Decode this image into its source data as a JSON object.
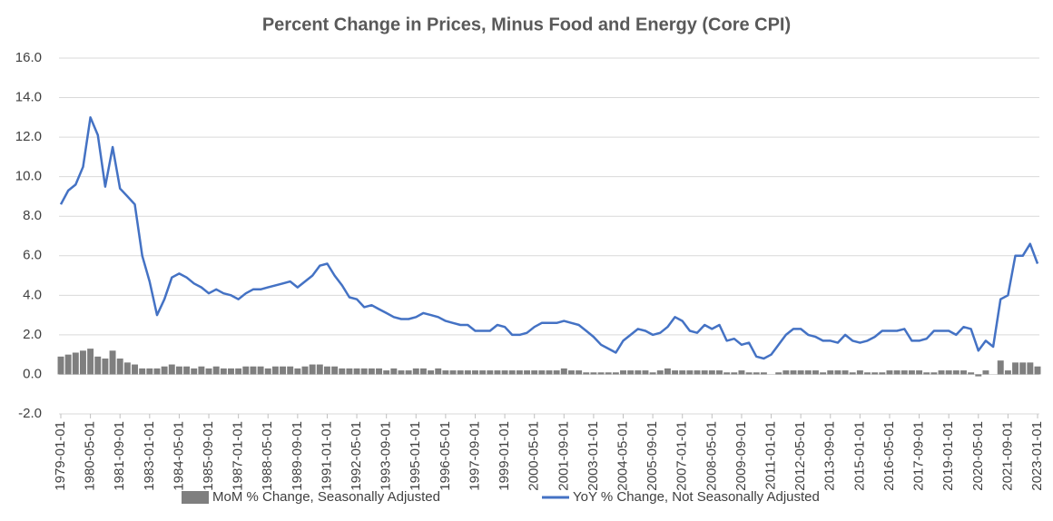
{
  "chart_data": {
    "type": "bar-line",
    "title": "Percent Change in Prices, Minus Food and Energy (Core CPI)",
    "categories": [
      "1979-01-01",
      null,
      null,
      null,
      "1980-05-01",
      null,
      null,
      null,
      "1981-09-01",
      null,
      null,
      null,
      "1983-01-01",
      null,
      null,
      null,
      "1984-05-01",
      null,
      null,
      null,
      "1985-09-01",
      null,
      null,
      null,
      "1987-01-01",
      null,
      null,
      null,
      "1988-05-01",
      null,
      null,
      null,
      "1989-09-01",
      null,
      null,
      null,
      "1991-01-01",
      null,
      null,
      null,
      "1992-05-01",
      null,
      null,
      null,
      "1993-09-01",
      null,
      null,
      null,
      "1995-01-01",
      null,
      null,
      null,
      "1996-05-01",
      null,
      null,
      null,
      "1997-09-01",
      null,
      null,
      null,
      "1999-01-01",
      null,
      null,
      null,
      "2000-05-01",
      null,
      null,
      null,
      "2001-09-01",
      null,
      null,
      null,
      "2003-01-01",
      null,
      null,
      null,
      "2004-05-01",
      null,
      null,
      null,
      "2005-09-01",
      null,
      null,
      null,
      "2007-01-01",
      null,
      null,
      null,
      "2008-05-01",
      null,
      null,
      null,
      "2009-09-01",
      null,
      null,
      null,
      "2011-01-01",
      null,
      null,
      null,
      "2012-05-01",
      null,
      null,
      null,
      "2013-09-01",
      null,
      null,
      null,
      "2015-01-01",
      null,
      null,
      null,
      "2016-05-01",
      null,
      null,
      null,
      "2017-09-01",
      null,
      null,
      null,
      "2019-01-01",
      null,
      null,
      null,
      "2020-05-01",
      null,
      null,
      null,
      "2021-09-01",
      null,
      null,
      null,
      "2023-01-01"
    ],
    "series": [
      {
        "name": "MoM % Change, Seasonally Adjusted",
        "type": "bar",
        "color": "#7f7f7f",
        "values": [
          0.9,
          1.0,
          1.1,
          1.2,
          1.3,
          0.9,
          0.8,
          1.2,
          0.8,
          0.6,
          0.5,
          0.3,
          0.3,
          0.3,
          0.4,
          0.5,
          0.4,
          0.4,
          0.3,
          0.4,
          0.3,
          0.4,
          0.3,
          0.3,
          0.3,
          0.4,
          0.4,
          0.4,
          0.3,
          0.4,
          0.4,
          0.4,
          0.3,
          0.4,
          0.5,
          0.5,
          0.4,
          0.4,
          0.3,
          0.3,
          0.3,
          0.3,
          0.3,
          0.3,
          0.2,
          0.3,
          0.2,
          0.2,
          0.3,
          0.3,
          0.2,
          0.3,
          0.2,
          0.2,
          0.2,
          0.2,
          0.2,
          0.2,
          0.2,
          0.2,
          0.2,
          0.2,
          0.2,
          0.2,
          0.2,
          0.2,
          0.2,
          0.2,
          0.3,
          0.2,
          0.2,
          0.1,
          0.1,
          0.1,
          0.1,
          0.1,
          0.2,
          0.2,
          0.2,
          0.2,
          0.1,
          0.2,
          0.3,
          0.2,
          0.2,
          0.2,
          0.2,
          0.2,
          0.2,
          0.2,
          0.1,
          0.1,
          0.2,
          0.1,
          0.1,
          0.1,
          0.0,
          0.1,
          0.2,
          0.2,
          0.2,
          0.2,
          0.2,
          0.1,
          0.2,
          0.2,
          0.2,
          0.1,
          0.2,
          0.1,
          0.1,
          0.1,
          0.2,
          0.2,
          0.2,
          0.2,
          0.2,
          0.1,
          0.1,
          0.2,
          0.2,
          0.2,
          0.2,
          0.1,
          -0.1,
          0.2,
          0.0,
          0.7,
          0.2,
          0.6,
          0.6,
          0.6,
          0.4
        ]
      },
      {
        "name": "YoY % Change, Not Seasonally Adjusted",
        "type": "line",
        "color": "#4472c4",
        "values": [
          8.6,
          9.3,
          9.6,
          10.5,
          13.0,
          12.1,
          9.5,
          11.5,
          9.4,
          9.0,
          8.6,
          6.0,
          4.7,
          3.0,
          3.8,
          4.9,
          5.1,
          4.9,
          4.6,
          4.4,
          4.1,
          4.3,
          4.1,
          4.0,
          3.8,
          4.1,
          4.3,
          4.3,
          4.4,
          4.5,
          4.6,
          4.7,
          4.4,
          4.7,
          5.0,
          5.5,
          5.6,
          5.0,
          4.5,
          3.9,
          3.8,
          3.4,
          3.5,
          3.3,
          3.1,
          2.9,
          2.8,
          2.8,
          2.9,
          3.1,
          3.0,
          2.9,
          2.7,
          2.6,
          2.5,
          2.5,
          2.2,
          2.2,
          2.2,
          2.5,
          2.4,
          2.0,
          2.0,
          2.1,
          2.4,
          2.6,
          2.6,
          2.6,
          2.7,
          2.6,
          2.5,
          2.2,
          1.9,
          1.5,
          1.3,
          1.1,
          1.7,
          2.0,
          2.3,
          2.2,
          2.0,
          2.1,
          2.4,
          2.9,
          2.7,
          2.2,
          2.1,
          2.5,
          2.3,
          2.5,
          1.7,
          1.8,
          1.5,
          1.6,
          0.9,
          0.8,
          1.0,
          1.5,
          2.0,
          2.3,
          2.3,
          2.0,
          1.9,
          1.7,
          1.7,
          1.6,
          2.0,
          1.7,
          1.6,
          1.7,
          1.9,
          2.2,
          2.2,
          2.2,
          2.3,
          1.7,
          1.7,
          1.8,
          2.2,
          2.2,
          2.2,
          2.0,
          2.4,
          2.3,
          1.2,
          1.7,
          1.4,
          3.8,
          4.0,
          6.0,
          6.0,
          6.6,
          5.6
        ]
      }
    ],
    "ylim": [
      -2.0,
      16.0
    ],
    "yticks": [
      {
        "value": -2,
        "label": "-2.0"
      },
      {
        "value": 0,
        "label": "0.0"
      },
      {
        "value": 2,
        "label": "2.0"
      },
      {
        "value": 4,
        "label": "4.0"
      },
      {
        "value": 6,
        "label": "6.0"
      },
      {
        "value": 8,
        "label": "8.0"
      },
      {
        "value": 10,
        "label": "10.0"
      },
      {
        "value": 12,
        "label": "12.0"
      },
      {
        "value": 14,
        "label": "14.0"
      },
      {
        "value": 16,
        "label": "16.0"
      }
    ],
    "grid": true,
    "legend": "bottom"
  }
}
